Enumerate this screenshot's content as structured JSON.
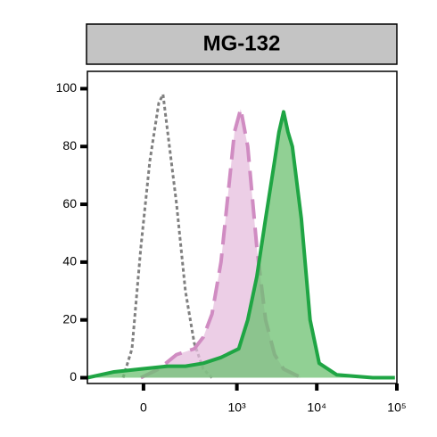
{
  "chart_data": {
    "type": "area",
    "title": "MG-132",
    "xscale": "asinh",
    "xlim": [
      -330,
      100000
    ],
    "ylim": [
      -2,
      106
    ],
    "xticks": [
      0,
      {
        "value": 1000,
        "label": "10³"
      },
      {
        "value": 10000,
        "label": "10⁴"
      },
      {
        "value": 100000,
        "label": "10⁵"
      }
    ],
    "yticks": [
      0,
      20,
      40,
      60,
      80,
      100
    ],
    "series": [
      {
        "color": "#808080",
        "fill": "none",
        "dash": "4 3",
        "x": [
          -85,
          -46,
          -10.5,
          25,
          62,
          81,
          103,
          151,
          208,
          279,
          370,
          482
        ],
        "values": [
          0,
          10,
          45,
          75,
          95,
          98,
          85,
          60,
          30,
          12,
          3,
          0
        ]
      },
      {
        "color": "#d08cc2",
        "fill": "#e6bedd",
        "dash": "22 10",
        "x": [
          -10.5,
          62,
          151,
          279,
          370,
          482,
          629,
          819,
          933,
          1117,
          1370,
          1780,
          2290,
          2970,
          3850,
          6410
        ],
        "values": [
          0,
          3,
          8,
          10,
          14,
          22,
          40,
          70,
          85,
          93,
          80,
          45,
          20,
          8,
          3,
          0
        ]
      },
      {
        "color": "#1fa544",
        "fill": "#6cc070",
        "dash": "none",
        "x": [
          -330,
          -130,
          -10.5,
          103,
          208,
          370,
          629,
          1056,
          1370,
          1780,
          2290,
          2970,
          3370,
          3850,
          4360,
          4950,
          6410,
          8250,
          10700,
          17800,
          49900,
          94500
        ],
        "values": [
          0,
          2,
          3,
          4,
          4,
          5,
          7,
          10,
          20,
          35,
          55,
          75,
          85,
          92,
          85,
          80,
          55,
          20,
          5,
          1,
          0,
          0
        ]
      }
    ]
  }
}
